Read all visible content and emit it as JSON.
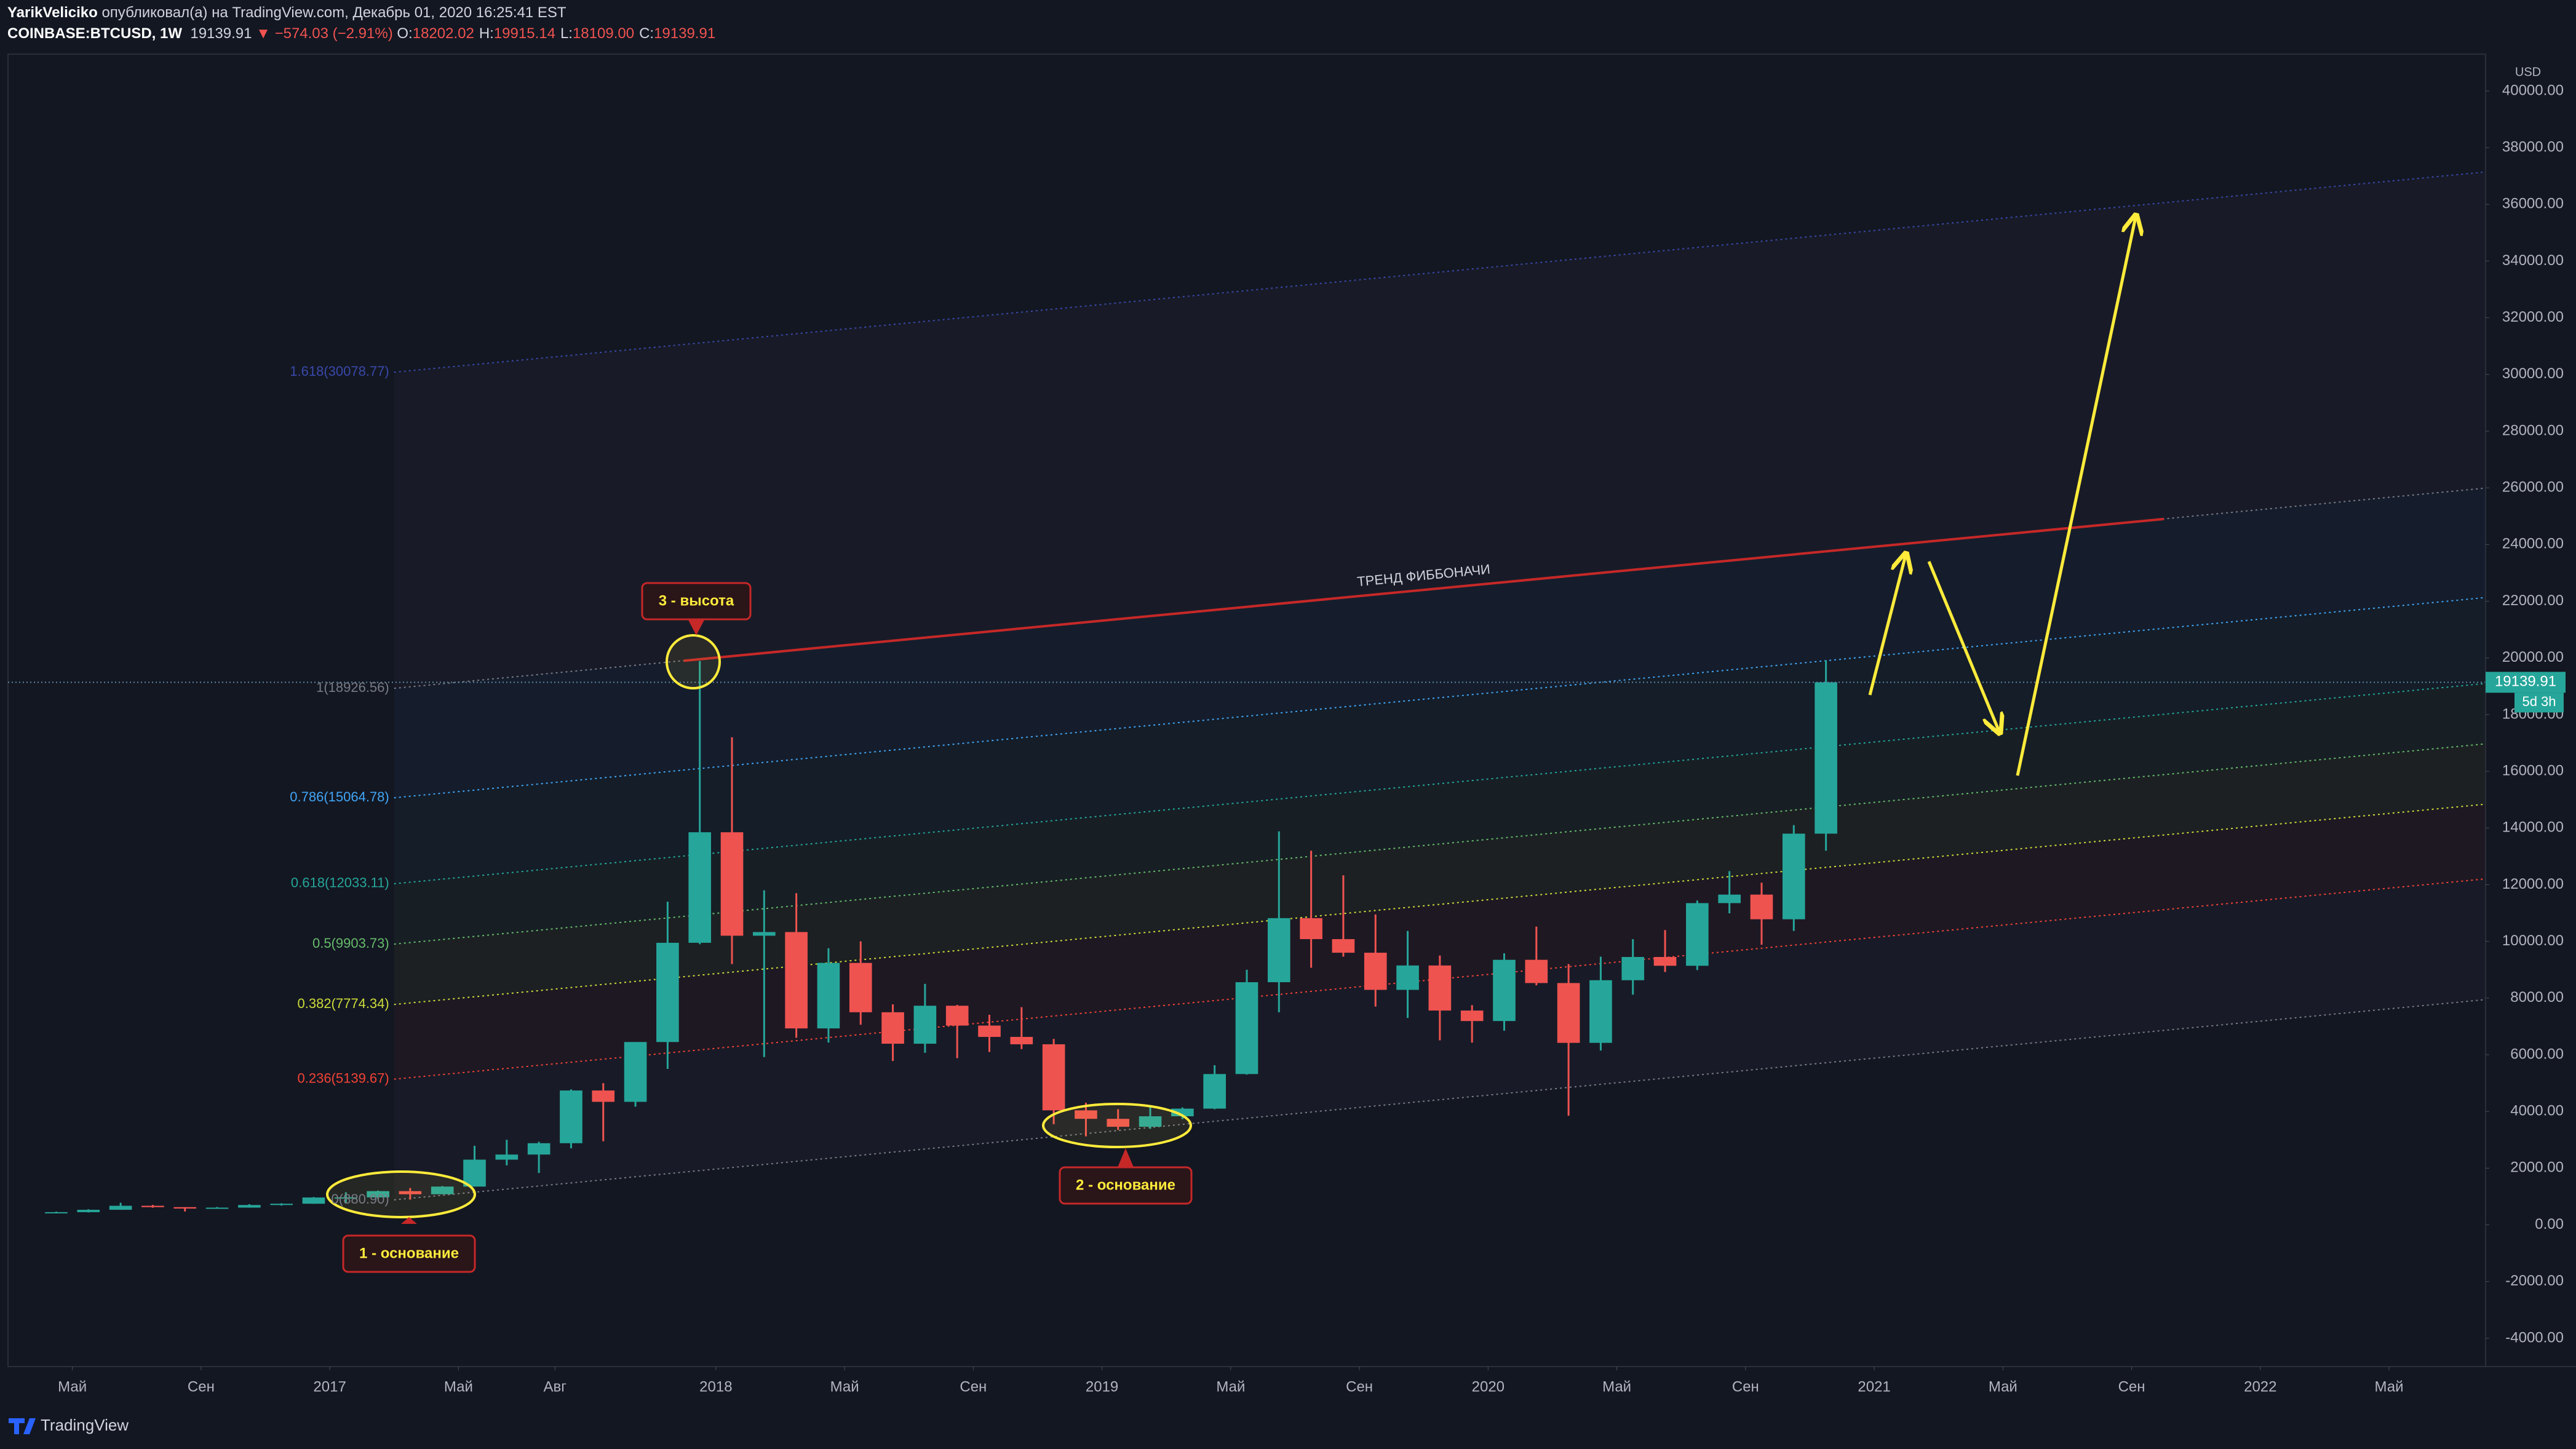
{
  "header": {
    "author": "YarikVeliciko",
    "published": "опубликовал(а) на TradingView.com, Декабрь 01, 2020 16:25:41 EST",
    "symbol": "COINBASE:BTCUSD, 1W",
    "last": "19139.91",
    "change": "▼ −574.03 (−2.91%)",
    "ohlc": [
      {
        "key": "O:",
        "value": "18202.02"
      },
      {
        "key": "H:",
        "value": "19915.14"
      },
      {
        "key": "L:",
        "value": "18109.00"
      },
      {
        "key": "C:",
        "value": "19139.91"
      }
    ]
  },
  "annotations": [
    "1 - основание",
    "2 - основание",
    "3 - высота"
  ],
  "footer": {
    "brand": "TradingView"
  },
  "chart_data": {
    "type": "candlestick",
    "currency": "USD",
    "up_color": "#26a69a",
    "down_color": "#ef5350",
    "x": [
      "2016-04",
      "2016-05",
      "2016-06",
      "2016-07",
      "2016-08",
      "2016-09",
      "2016-10",
      "2016-11",
      "2016-12",
      "2017-01",
      "2017-02",
      "2017-03",
      "2017-04",
      "2017-05",
      "2017-06",
      "2017-07",
      "2017-08",
      "2017-09",
      "2017-10",
      "2017-11",
      "2017-12",
      "2018-01",
      "2018-02",
      "2018-03",
      "2018-04",
      "2018-05",
      "2018-06",
      "2018-07",
      "2018-08",
      "2018-09",
      "2018-10",
      "2018-11",
      "2018-12",
      "2019-01",
      "2019-02",
      "2019-03",
      "2019-04",
      "2019-05",
      "2019-06",
      "2019-07",
      "2019-08",
      "2019-09",
      "2019-10",
      "2019-11",
      "2019-12",
      "2020-01",
      "2020-02",
      "2020-03",
      "2020-04",
      "2020-05",
      "2020-06",
      "2020-07",
      "2020-08",
      "2020-09",
      "2020-10",
      "2020-11"
    ],
    "open": [
      416,
      448,
      531,
      673,
      624,
      575,
      608,
      700,
      745,
      965,
      970,
      1190,
      1080,
      1350,
      2300,
      2480,
      2880,
      4740,
      4340,
      6450,
      9950,
      13850,
      10200,
      10330,
      6930,
      9240,
      7500,
      6390,
      7730,
      7030,
      6630,
      6370,
      4040,
      3740,
      3460,
      3830,
      4100,
      5320,
      8560,
      10820,
      10080,
      9600,
      8290,
      9150,
      7560,
      7190,
      9350,
      8530,
      6420,
      8630,
      9450,
      9140,
      11350,
      11650,
      10780,
      13800
    ],
    "high": [
      467,
      550,
      780,
      704,
      625,
      630,
      730,
      760,
      980,
      1150,
      1210,
      1300,
      1370,
      2790,
      3000,
      2930,
      4780,
      5000,
      6450,
      11400,
      19891,
      17200,
      11800,
      11700,
      9760,
      10000,
      7780,
      8500,
      7760,
      7410,
      7680,
      6560,
      4310,
      4080,
      4200,
      4140,
      5630,
      9000,
      13880,
      13200,
      12330,
      10950,
      10370,
      9500,
      7750,
      9580,
      10520,
      9200,
      9460,
      10080,
      10400,
      11440,
      12480,
      12070,
      14100,
      19915.14
    ],
    "low": [
      412,
      436,
      530,
      605,
      470,
      570,
      605,
      680,
      740,
      750,
      920,
      890,
      1080,
      1350,
      2100,
      1830,
      2700,
      2950,
      4170,
      5500,
      9900,
      9200,
      5920,
      6600,
      6430,
      7060,
      5780,
      6070,
      5880,
      6100,
      6200,
      3550,
      3120,
      3350,
      3390,
      3730,
      4080,
      5300,
      7500,
      9070,
      9460,
      7700,
      7300,
      6510,
      6430,
      6850,
      8450,
      3850,
      6150,
      8120,
      8920,
      8990,
      10990,
      9880,
      10370,
      13200
    ],
    "close": [
      448,
      531,
      673,
      624,
      575,
      608,
      700,
      745,
      965,
      970,
      1190,
      1080,
      1350,
      2300,
      2480,
      2880,
      4740,
      4340,
      6450,
      9950,
      13850,
      10200,
      10330,
      6930,
      9240,
      7500,
      6390,
      7730,
      7030,
      6630,
      6370,
      4040,
      3740,
      3460,
      3830,
      4100,
      5320,
      8560,
      10820,
      10080,
      9600,
      8290,
      9150,
      7560,
      7190,
      9350,
      8530,
      6420,
      8630,
      9450,
      9140,
      11350,
      11650,
      10780,
      13800,
      19139.91
    ],
    "current_price": 19139.91,
    "countdown": "5d 3h",
    "xlim": [
      "2016-03",
      "2022-08"
    ],
    "xticks": [
      {
        "value": "2016-05",
        "label": "Май"
      },
      {
        "value": "2016-09",
        "label": "Сен"
      },
      {
        "value": "2017-01",
        "label": "2017"
      },
      {
        "value": "2017-05",
        "label": "Май"
      },
      {
        "value": "2017-08",
        "label": "Авг"
      },
      {
        "value": "2018-01",
        "label": "2018"
      },
      {
        "value": "2018-05",
        "label": "Май"
      },
      {
        "value": "2018-09",
        "label": "Сен"
      },
      {
        "value": "2019-01",
        "label": "2019"
      },
      {
        "value": "2019-05",
        "label": "Май"
      },
      {
        "value": "2019-09",
        "label": "Сен"
      },
      {
        "value": "2020-01",
        "label": "2020"
      },
      {
        "value": "2020-05",
        "label": "Май"
      },
      {
        "value": "2020-09",
        "label": "Сен"
      },
      {
        "value": "2021-01",
        "label": "2021"
      },
      {
        "value": "2021-05",
        "label": "Май"
      },
      {
        "value": "2021-09",
        "label": "Сен"
      },
      {
        "value": "2022-01",
        "label": "2022"
      },
      {
        "value": "2022-05",
        "label": "Май"
      }
    ],
    "ylim": [
      -5000,
      41300
    ],
    "yticks": [
      {
        "value": -4000,
        "label": "-4000.00"
      },
      {
        "value": -2000,
        "label": "-2000.00"
      },
      {
        "value": 0,
        "label": "0.00"
      },
      {
        "value": 2000,
        "label": "2000.00"
      },
      {
        "value": 4000,
        "label": "4000.00"
      },
      {
        "value": 6000,
        "label": "6000.00"
      },
      {
        "value": 8000,
        "label": "8000.00"
      },
      {
        "value": 10000,
        "label": "10000.00"
      },
      {
        "value": 12000,
        "label": "12000.00"
      },
      {
        "value": 14000,
        "label": "14000.00"
      },
      {
        "value": 16000,
        "label": "16000.00"
      },
      {
        "value": 18000,
        "label": "18000.00"
      },
      {
        "value": 20000,
        "label": "20000.00"
      },
      {
        "value": 22000,
        "label": "22000.00"
      },
      {
        "value": 24000,
        "label": "24000.00"
      },
      {
        "value": 26000,
        "label": "26000.00"
      },
      {
        "value": 28000,
        "label": "28000.00"
      },
      {
        "value": 30000,
        "label": "30000.00"
      },
      {
        "value": 32000,
        "label": "32000.00"
      },
      {
        "value": 34000,
        "label": "34000.00"
      },
      {
        "value": 36000,
        "label": "36000.00"
      },
      {
        "value": 38000,
        "label": "38000.00"
      },
      {
        "value": 40000,
        "label": "40000.00"
      }
    ],
    "fib_start": "2017-03",
    "fib_levels": [
      {
        "value": 30078.77,
        "label": "1.618(30078.77)",
        "color": "#3949ab"
      },
      {
        "value": 18926.56,
        "label": "1(18926.56)",
        "color": "#787b86"
      },
      {
        "value": 15064.78,
        "label": "0.786(15064.78)",
        "color": "#42a5f5"
      },
      {
        "value": 12033.11,
        "label": "0.618(12033.11)",
        "color": "#26a69a"
      },
      {
        "value": 9903.73,
        "label": "0.5(9903.73)",
        "color": "#66bb6a"
      },
      {
        "value": 7774.34,
        "label": "0.382(7774.34)",
        "color": "#cddc39"
      },
      {
        "value": 5139.67,
        "label": "0.236(5139.67)",
        "color": "#f44336"
      },
      {
        "value": 880.9,
        "label": "0(880.90)",
        "color": "#787b86"
      }
    ],
    "trend_line": {
      "label": "ТРЕНД ФИББОНАЧИ",
      "color": "#c62828",
      "points": [
        {
          "x": "2017-12",
          "y": 19900
        },
        {
          "x": "2021-10",
          "y": 24900
        }
      ]
    }
  }
}
